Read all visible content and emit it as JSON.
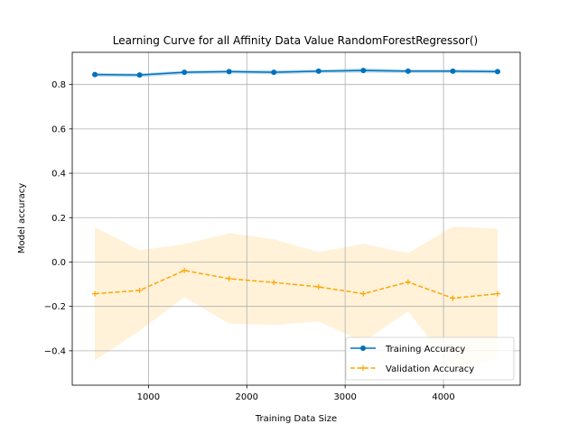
{
  "chart_data": {
    "type": "line",
    "title": "Learning Curve for all Affinity Data Value RandomForestRegressor()",
    "xlabel": "Training Data Size",
    "ylabel": "Model accuracy",
    "xlim": [
      225,
      4780
    ],
    "ylim": [
      -0.555,
      0.945
    ],
    "xticks": [
      1000,
      2000,
      3000,
      4000
    ],
    "yticks": [
      -0.4,
      -0.2,
      0.0,
      0.2,
      0.4,
      0.6,
      0.8
    ],
    "ytick_labels": [
      "−0.4",
      "−0.2",
      "0.0",
      "0.2",
      "0.4",
      "0.6",
      "0.8"
    ],
    "grid": true,
    "legend_position": "lower-right",
    "x": [
      455,
      910,
      1365,
      1820,
      2275,
      2730,
      3185,
      3640,
      4095,
      4550
    ],
    "series": [
      {
        "name": "Training Accuracy",
        "color": "#0072bd",
        "band_color": "#0072bd",
        "marker": "circle",
        "dash": "solid",
        "values": [
          0.845,
          0.843,
          0.855,
          0.858,
          0.855,
          0.86,
          0.863,
          0.86,
          0.86,
          0.858
        ],
        "upper": [
          0.852,
          0.85,
          0.862,
          0.865,
          0.864,
          0.867,
          0.873,
          0.868,
          0.868,
          0.866
        ],
        "lower": [
          0.835,
          0.833,
          0.846,
          0.85,
          0.846,
          0.852,
          0.853,
          0.852,
          0.852,
          0.85
        ]
      },
      {
        "name": "Validation Accuracy",
        "color": "#ffa500",
        "band_color": "#ffa500",
        "marker": "plus",
        "dash": "dashed",
        "values": [
          -0.143,
          -0.128,
          -0.038,
          -0.075,
          -0.092,
          -0.112,
          -0.143,
          -0.09,
          -0.163,
          -0.143
        ],
        "upper": [
          0.158,
          0.053,
          0.08,
          0.13,
          0.103,
          0.045,
          0.082,
          0.04,
          0.16,
          0.15
        ],
        "lower": [
          -0.443,
          -0.31,
          -0.158,
          -0.278,
          -0.283,
          -0.268,
          -0.36,
          -0.222,
          -0.48,
          -0.435
        ]
      }
    ]
  }
}
